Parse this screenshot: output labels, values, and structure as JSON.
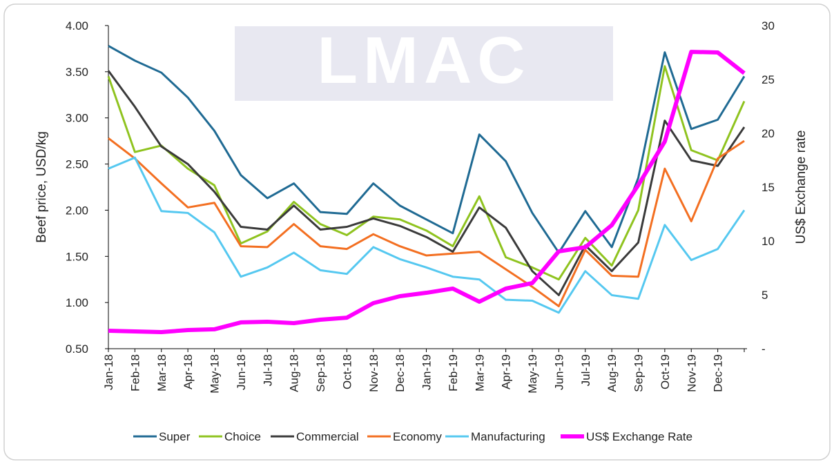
{
  "chart_data": {
    "type": "line",
    "watermark": "LMAC",
    "y_label": "Beef price, USD/kg",
    "y2_label": "US$ Exchange rate",
    "categories": [
      "Jan-18",
      "Feb-18",
      "Mar-18",
      "Apr-18",
      "May-18",
      "Jun-18",
      "Jul-18",
      "Aug-18",
      "Sep-18",
      "Oct-18",
      "Nov-18",
      "Dec-18",
      "Jan-19",
      "Feb-19",
      "Mar-19",
      "Apr-19",
      "May-19",
      "Jun-19",
      "Jul-19",
      "Aug-19",
      "Sep-19",
      "Oct-19",
      "Nov-19",
      "Dec-19",
      null
    ],
    "ylim": [
      0.5,
      4.0
    ],
    "yticks": [
      {
        "value": 0.5,
        "label": "0.50"
      },
      {
        "value": 1,
        "label": "1.00"
      },
      {
        "value": 1.5,
        "label": "1.50"
      },
      {
        "value": 2,
        "label": "2.00"
      },
      {
        "value": 2.5,
        "label": "2.50"
      },
      {
        "value": 3,
        "label": "3.00"
      },
      {
        "value": 3.5,
        "label": "3.50"
      },
      {
        "value": 4,
        "label": "4.00"
      }
    ],
    "y2lim": [
      0,
      30
    ],
    "y2ticks": [
      {
        "value": 0,
        "label": "-"
      },
      5,
      10,
      15,
      20,
      25,
      30
    ],
    "series": [
      {
        "name": "Super",
        "color": "#1f6a93",
        "values": [
          3.78,
          3.62,
          3.49,
          3.22,
          2.86,
          2.38,
          2.13,
          2.29,
          1.98,
          1.96,
          2.29,
          2.05,
          1.9,
          1.75,
          2.82,
          2.53,
          1.97,
          1.54,
          1.99,
          1.6,
          2.35,
          3.71,
          2.88,
          2.98,
          3.45
        ]
      },
      {
        "name": "Choice",
        "color": "#8fc31f",
        "values": [
          3.45,
          2.63,
          2.7,
          2.45,
          2.27,
          1.64,
          1.77,
          2.09,
          1.85,
          1.73,
          1.93,
          1.9,
          1.78,
          1.61,
          2.15,
          1.49,
          1.38,
          1.25,
          1.7,
          1.4,
          2.0,
          3.56,
          2.65,
          2.54,
          3.18
        ]
      },
      {
        "name": "Commercial",
        "color": "#3a3a3a",
        "values": [
          3.51,
          3.12,
          2.69,
          2.5,
          2.2,
          1.82,
          1.79,
          2.05,
          1.79,
          1.82,
          1.91,
          1.83,
          1.71,
          1.55,
          2.03,
          1.81,
          1.34,
          1.08,
          1.62,
          1.34,
          1.65,
          2.97,
          2.54,
          2.48,
          2.9
        ]
      },
      {
        "name": "Economy",
        "color": "#f36f21",
        "values": [
          2.78,
          2.56,
          2.29,
          2.03,
          2.08,
          1.61,
          1.6,
          1.85,
          1.61,
          1.58,
          1.74,
          1.61,
          1.51,
          1.53,
          1.55,
          1.36,
          1.17,
          0.96,
          1.57,
          1.29,
          1.28,
          2.45,
          1.88,
          2.56,
          2.75
        ]
      },
      {
        "name": "Manufacturing",
        "color": "#55c8f0",
        "values": [
          2.45,
          2.57,
          1.99,
          1.97,
          1.76,
          1.28,
          1.38,
          1.54,
          1.35,
          1.31,
          1.6,
          1.47,
          1.38,
          1.28,
          1.25,
          1.03,
          1.02,
          0.89,
          1.34,
          1.08,
          1.04,
          1.84,
          1.46,
          1.58,
          2.0
        ]
      },
      {
        "name": "US$ Exchange Rate",
        "color": "#ff00ff",
        "axis": "y2",
        "values": [
          1.67,
          1.6,
          1.54,
          1.73,
          1.8,
          2.44,
          2.5,
          2.37,
          2.69,
          2.88,
          4.23,
          4.87,
          5.19,
          5.58,
          4.36,
          5.58,
          6.09,
          9.04,
          9.42,
          11.47,
          15.19,
          19.23,
          27.56,
          27.5,
          25.58
        ]
      }
    ]
  }
}
